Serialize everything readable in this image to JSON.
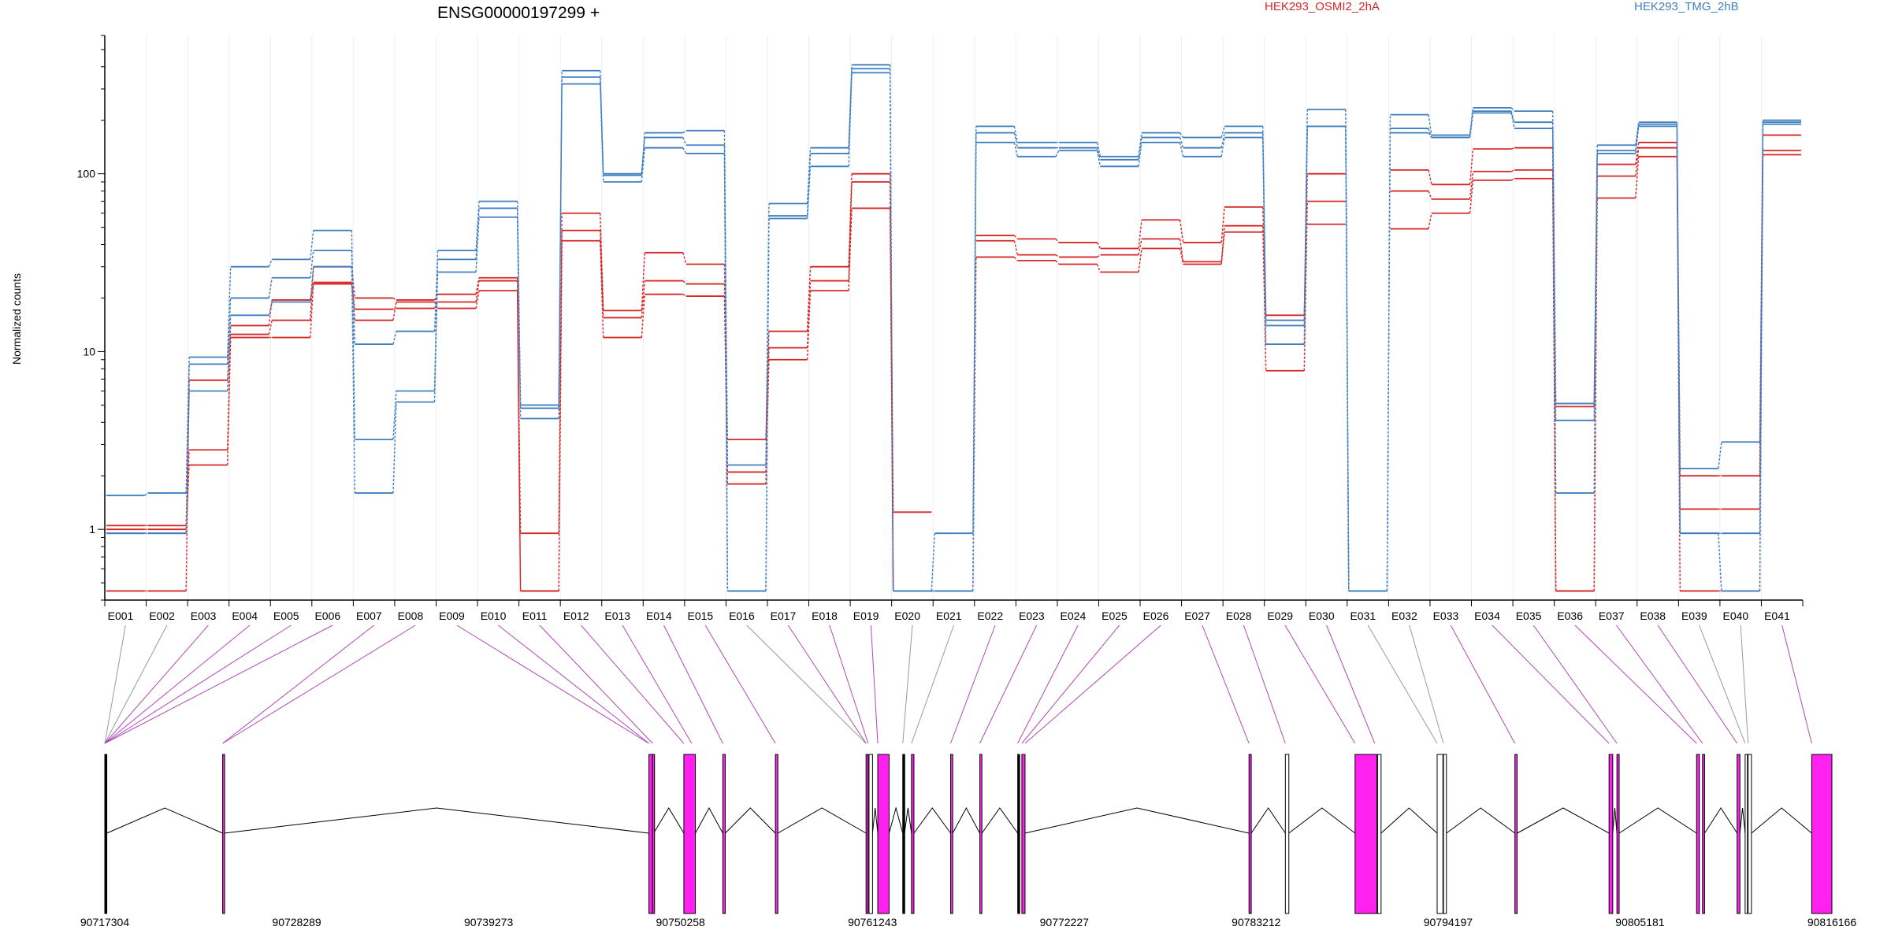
{
  "chart_data": {
    "type": "line",
    "title": "ENSG00000197299 +",
    "ylabel": "Normalized counts",
    "xlabel": "",
    "yscale": "log",
    "ylim": [
      0.4,
      600
    ],
    "yticks": [
      1,
      10,
      100
    ],
    "ytick_labels": [
      "1",
      "10",
      "100"
    ],
    "grid": "vertical",
    "legend_placement": "top",
    "categories": [
      "E001",
      "E002",
      "E003",
      "E004",
      "E005",
      "E006",
      "E007",
      "E008",
      "E009",
      "E010",
      "E011",
      "E012",
      "E013",
      "E014",
      "E015",
      "E016",
      "E017",
      "E018",
      "E019",
      "E020",
      "E021",
      "E022",
      "E023",
      "E024",
      "E025",
      "E026",
      "E027",
      "E028",
      "E029",
      "E030",
      "E031",
      "E032",
      "E033",
      "E034",
      "E035",
      "E036",
      "E037",
      "E038",
      "E039",
      "E040",
      "E041"
    ],
    "series": [
      {
        "name": "HEK293_OSMI2_2hA",
        "color": "#d62728",
        "replicates": [
          [
            1.05,
            1.05,
            2.8,
            12.5,
            15,
            30,
            20,
            19.5,
            21,
            26,
            0.95,
            60,
            17,
            36,
            31,
            3.2,
            13,
            30,
            100,
            1.25,
            null,
            45,
            43,
            41,
            38,
            55,
            41,
            65,
            16,
            100,
            null,
            105,
            87,
            138,
            140,
            0.45,
            113,
            150,
            2,
            2,
            165
          ],
          [
            0.45,
            0.45,
            6.9,
            14,
            19.5,
            24,
            17.3,
            17.5,
            19,
            25,
            0.45,
            48,
            15.5,
            25,
            24,
            2.1,
            10.5,
            25,
            90,
            0.45,
            null,
            42,
            35,
            34,
            35,
            43,
            32,
            51,
            7.8,
            70,
            null,
            80,
            72,
            103,
            105,
            4.9,
            97,
            140,
            1.3,
            1.3,
            135
          ],
          [
            1,
            1,
            2.3,
            12,
            12,
            24.5,
            15,
            19,
            17.5,
            22,
            0.45,
            42,
            12,
            21,
            20.5,
            1.8,
            9,
            22,
            64,
            0.45,
            0.45,
            34,
            32.5,
            31,
            28,
            38,
            31,
            47,
            null,
            52,
            null,
            49,
            60,
            92,
            94,
            0.45,
            73,
            125,
            0.45,
            0.45,
            128
          ]
        ]
      },
      {
        "name": "HEK293_TMG_2hB",
        "color": "#3f7fbf",
        "replicates": [
          [
            1.55,
            1.6,
            9.3,
            30,
            33,
            48,
            3.2,
            6,
            37,
            70,
            5,
            380,
            100,
            170,
            175,
            2.3,
            68,
            140,
            410,
            0.45,
            0.95,
            185,
            150,
            150,
            125,
            170,
            160,
            185,
            15,
            230,
            0.45,
            215,
            165,
            235,
            225,
            5.1,
            145,
            195,
            2.2,
            3.1,
            200
          ],
          [
            0.95,
            0.95,
            8.5,
            20,
            26,
            37,
            11,
            13,
            33,
            64,
            4.8,
            350,
            98,
            160,
            145,
            0.45,
            58,
            130,
            390,
            0.45,
            0.45,
            170,
            140,
            140,
            120,
            160,
            140,
            170,
            14,
            185,
            0.45,
            180,
            160,
            225,
            195,
            4.1,
            135,
            190,
            0.95,
            0.95,
            195
          ],
          [
            0.95,
            0.95,
            6,
            16,
            19,
            30,
            1.6,
            5.2,
            28,
            57,
            4.2,
            320,
            90,
            140,
            130,
            0.45,
            56,
            110,
            370,
            0.45,
            0.45,
            150,
            125,
            135,
            110,
            150,
            125,
            160,
            11,
            185,
            0.45,
            170,
            160,
            220,
            180,
            1.6,
            130,
            185,
            0.95,
            0.45,
            190
          ]
        ]
      }
    ],
    "genome_axis": {
      "start": 90717304,
      "end": 90816166,
      "tick_labels": [
        "90717304",
        "90728289",
        "90739273",
        "90750258",
        "90761243",
        "90772227",
        "90783212",
        "90794197",
        "90805181",
        "90816166"
      ]
    },
    "exons": [
      {
        "start": 90717304,
        "end": 90717420,
        "color": "#000000"
      },
      {
        "start": 90724050,
        "end": 90724140,
        "color": "#ff22ee"
      },
      {
        "start": 90748450,
        "end": 90748650,
        "color": "#ff22ee"
      },
      {
        "start": 90748660,
        "end": 90748720,
        "color": "#ff22ee"
      },
      {
        "start": 90750450,
        "end": 90751110,
        "color": "#ff22ee"
      },
      {
        "start": 90752680,
        "end": 90752820,
        "color": "#ff22ee"
      },
      {
        "start": 90755690,
        "end": 90755830,
        "color": "#ff22ee"
      },
      {
        "start": 90760880,
        "end": 90761000,
        "color": "#ff22ee"
      },
      {
        "start": 90761050,
        "end": 90761250,
        "color": "#ffffff"
      },
      {
        "start": 90761550,
        "end": 90762200,
        "color": "#ff22ee"
      },
      {
        "start": 90762980,
        "end": 90763080,
        "color": "#000000"
      },
      {
        "start": 90763480,
        "end": 90763620,
        "color": "#ff22ee"
      },
      {
        "start": 90765720,
        "end": 90765840,
        "color": "#ff22ee"
      },
      {
        "start": 90767390,
        "end": 90767510,
        "color": "#ff22ee"
      },
      {
        "start": 90769560,
        "end": 90769660,
        "color": "#000000"
      },
      {
        "start": 90769800,
        "end": 90769980,
        "color": "#ff22ee"
      },
      {
        "start": 90782800,
        "end": 90782930,
        "color": "#ff22ee"
      },
      {
        "start": 90784880,
        "end": 90785080,
        "color": "#ffffff"
      },
      {
        "start": 90788870,
        "end": 90790120,
        "color": "#ff22ee"
      },
      {
        "start": 90790160,
        "end": 90790360,
        "color": "#ffffff"
      },
      {
        "start": 90793570,
        "end": 90793900,
        "color": "#ffffff"
      },
      {
        "start": 90793930,
        "end": 90794100,
        "color": "#ffffff"
      },
      {
        "start": 90798020,
        "end": 90798150,
        "color": "#ff22ee"
      },
      {
        "start": 90803410,
        "end": 90803620,
        "color": "#ff22ee"
      },
      {
        "start": 90803860,
        "end": 90803990,
        "color": "#ff22ee"
      },
      {
        "start": 90808420,
        "end": 90808580,
        "color": "#ff22ee"
      },
      {
        "start": 90808760,
        "end": 90808880,
        "color": "#ff22ee"
      },
      {
        "start": 90810740,
        "end": 90810900,
        "color": "#ff22ee"
      },
      {
        "start": 90811200,
        "end": 90811330,
        "color": "#ffffff"
      },
      {
        "start": 90811370,
        "end": 90811560,
        "color": "#ffffff"
      },
      {
        "start": 90815010,
        "end": 90816166,
        "color": "#ff22ee"
      }
    ],
    "feature_map": [
      {
        "from": 0,
        "to": 90717304,
        "color": "#999999"
      },
      {
        "from": 1,
        "to": 90717304,
        "color": "#999999"
      },
      {
        "from": 2,
        "to": 90717304,
        "color": "#b048b5"
      },
      {
        "from": 3,
        "to": 90717304,
        "color": "#b048b5"
      },
      {
        "from": 4,
        "to": 90717304,
        "color": "#b048b5"
      },
      {
        "from": 5,
        "to": 90717304,
        "color": "#b048b5"
      },
      {
        "from": 6,
        "to": 90724050,
        "color": "#b048b5"
      },
      {
        "from": 7,
        "to": 90724050,
        "color": "#b048b5"
      },
      {
        "from": 8,
        "to": 90748450,
        "color": "#b048b5"
      },
      {
        "from": 9,
        "to": 90748450,
        "color": "#b048b5"
      },
      {
        "from": 10,
        "to": 90748660,
        "color": "#b048b5"
      },
      {
        "from": 11,
        "to": 90750450,
        "color": "#b048b5"
      },
      {
        "from": 12,
        "to": 90750900,
        "color": "#b048b5"
      },
      {
        "from": 13,
        "to": 90752680,
        "color": "#b048b5"
      },
      {
        "from": 14,
        "to": 90755690,
        "color": "#b048b5"
      },
      {
        "from": 15,
        "to": 90760880,
        "color": "#999999"
      },
      {
        "from": 16,
        "to": 90760880,
        "color": "#b048b5"
      },
      {
        "from": 17,
        "to": 90761000,
        "color": "#b048b5"
      },
      {
        "from": 18,
        "to": 90761550,
        "color": "#b048b5"
      },
      {
        "from": 19,
        "to": 90762980,
        "color": "#999999"
      },
      {
        "from": 20,
        "to": 90763480,
        "color": "#999999"
      },
      {
        "from": 21,
        "to": 90765720,
        "color": "#b048b5"
      },
      {
        "from": 22,
        "to": 90767390,
        "color": "#b048b5"
      },
      {
        "from": 23,
        "to": 90769560,
        "color": "#b048b5"
      },
      {
        "from": 24,
        "to": 90769800,
        "color": "#b048b5"
      },
      {
        "from": 25,
        "to": 90769980,
        "color": "#b048b5"
      },
      {
        "from": 26,
        "to": 90782800,
        "color": "#b048b5"
      },
      {
        "from": 27,
        "to": 90784880,
        "color": "#b048b5"
      },
      {
        "from": 28,
        "to": 90788870,
        "color": "#b048b5"
      },
      {
        "from": 29,
        "to": 90790000,
        "color": "#b048b5"
      },
      {
        "from": 30,
        "to": 90793570,
        "color": "#999999"
      },
      {
        "from": 31,
        "to": 90793930,
        "color": "#999999"
      },
      {
        "from": 32,
        "to": 90798020,
        "color": "#b048b5"
      },
      {
        "from": 33,
        "to": 90803410,
        "color": "#b048b5"
      },
      {
        "from": 34,
        "to": 90803860,
        "color": "#b048b5"
      },
      {
        "from": 35,
        "to": 90808420,
        "color": "#b048b5"
      },
      {
        "from": 36,
        "to": 90808760,
        "color": "#b048b5"
      },
      {
        "from": 37,
        "to": 90810740,
        "color": "#b048b5"
      },
      {
        "from": 38,
        "to": 90811200,
        "color": "#999999"
      },
      {
        "from": 39,
        "to": 90811370,
        "color": "#999999"
      },
      {
        "from": 40,
        "to": 90815010,
        "color": "#b048b5"
      }
    ]
  }
}
